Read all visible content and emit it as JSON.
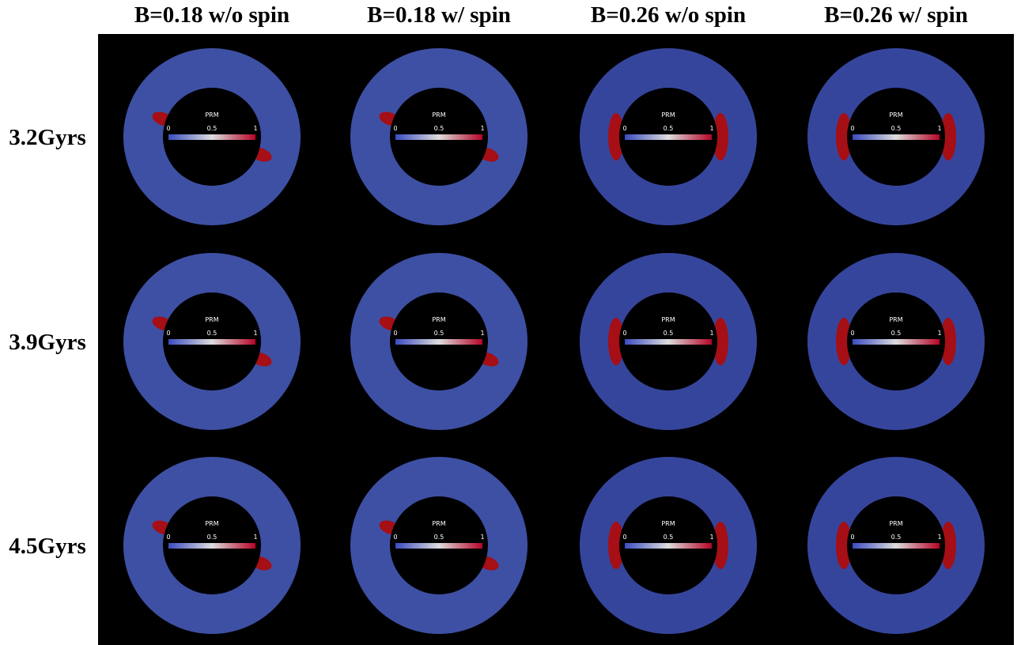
{
  "columns": [
    "B=0.18 w/o spin",
    "B=0.18 w/ spin",
    "B=0.26 w/o spin",
    "B=0.26 w/ spin"
  ],
  "rows": [
    "3.2Gyrs",
    "3.9Gyrs",
    "4.5Gyrs"
  ],
  "colorbar": {
    "label": "PRM",
    "range": [
      0,
      1
    ],
    "ticks": [
      0,
      0.5,
      1
    ]
  }
}
